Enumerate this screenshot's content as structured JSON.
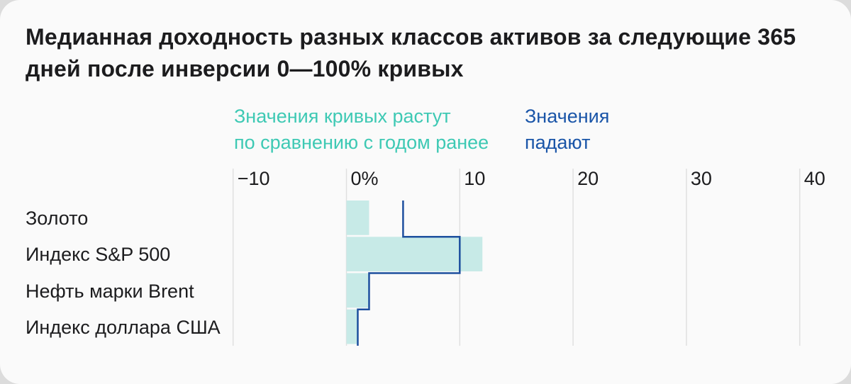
{
  "card": {
    "title": "Медианная доходность разных классов активов за следующие 365 дней после инверсии 0—100% кривых"
  },
  "legend": {
    "rising": {
      "lines": [
        "Значения кривых растут",
        "по сравнению с годом ранее"
      ],
      "color": "#3ec9b4"
    },
    "falling": {
      "lines": [
        "Значения",
        "падают"
      ],
      "color": "#1a55a8"
    }
  },
  "chart_data": {
    "type": "bar",
    "orientation": "horizontal",
    "title": "Медианная доходность разных классов активов за следующие 365 дней после инверсии 0—100% кривых",
    "unit": "%",
    "categories": [
      "Золото",
      "Индекс S&P 500",
      "Нефть марки Brent",
      "Индекс доллара США"
    ],
    "series": [
      {
        "name": "Значения кривых растут по сравнению с годом ранее",
        "style": "filled-bar",
        "color": "#c7eae7",
        "values": [
          2,
          12,
          2,
          1
        ]
      },
      {
        "name": "Значения падают",
        "style": "step-outline",
        "color": "#1d4f9e",
        "values": [
          5,
          10,
          2,
          1
        ]
      }
    ],
    "x_ticks": [
      {
        "value": -10,
        "label": "−10"
      },
      {
        "value": 0,
        "label": "0%"
      },
      {
        "value": 10,
        "label": "10"
      },
      {
        "value": 20,
        "label": "20"
      },
      {
        "value": 30,
        "label": "30"
      },
      {
        "value": 40,
        "label": "40"
      }
    ],
    "xlim": [
      -10,
      44
    ],
    "grid": "vertical",
    "gridline_color": "#e0e0e0",
    "legend_position": "top"
  },
  "colors": {
    "card_background": "#fafafa",
    "page_background": "#dcdcdc",
    "text": "#1c1c1e"
  }
}
